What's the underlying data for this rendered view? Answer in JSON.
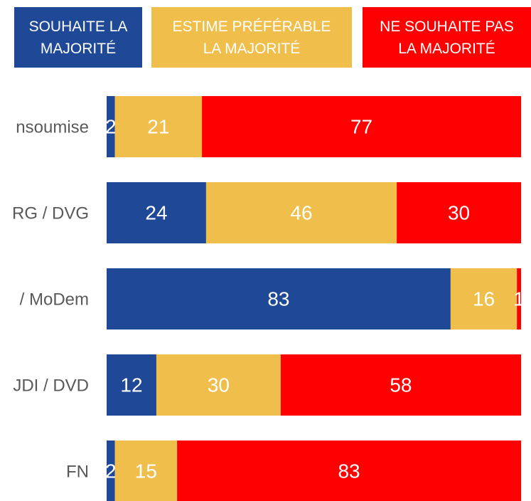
{
  "chart_data": {
    "type": "stacked-bar-horizontal",
    "categories": [
      "nsoumise",
      "RG / DVG",
      "/ MoDem",
      "JDI / DVD",
      "FN"
    ],
    "series": [
      {
        "name": "SOUHAITE LA MAJORITÉ",
        "color": "#1f4896",
        "values": [
          2,
          24,
          83,
          12,
          2
        ]
      },
      {
        "name": "ESTIME PRÉFÉRABLE LA MAJORITÉ",
        "color": "#f0be4b",
        "values": [
          21,
          46,
          16,
          30,
          15
        ]
      },
      {
        "name": "NE SOUHAITE PAS LA MAJORITÉ",
        "color": "#fe0000",
        "values": [
          77,
          30,
          1,
          58,
          83
        ]
      }
    ],
    "xlim": [
      0,
      100
    ]
  }
}
